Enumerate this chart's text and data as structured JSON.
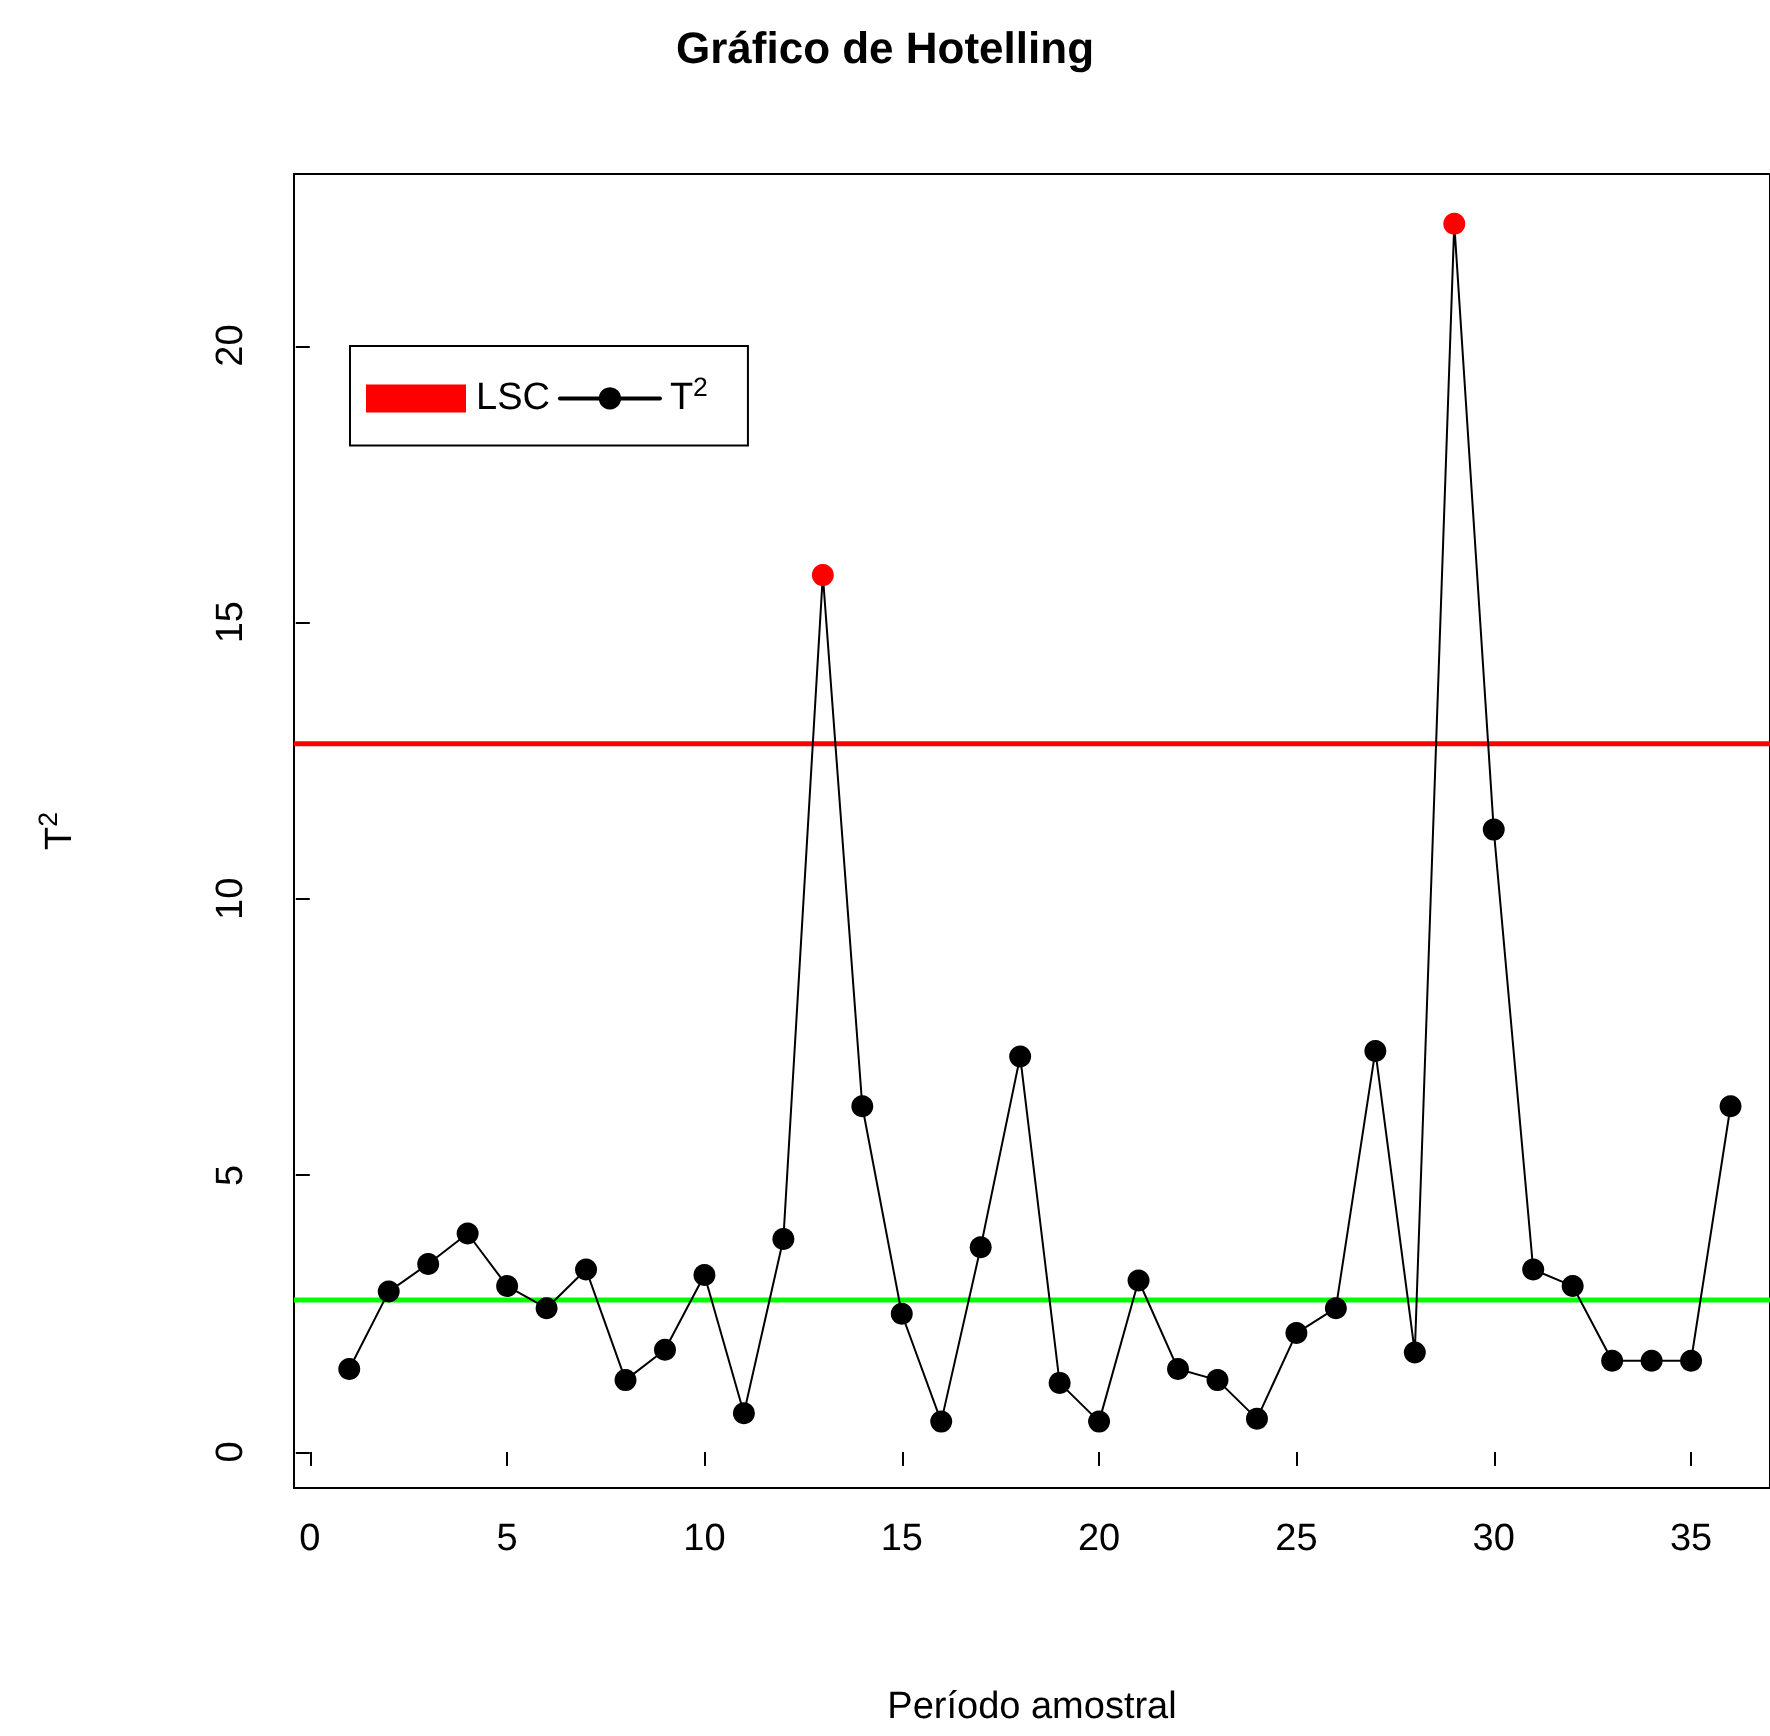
{
  "chart_data": {
    "type": "line",
    "title": "Gráfico de Hotelling",
    "xlabel": "Período amostral",
    "ylabel": "T$^{2}$",
    "x": [
      1,
      2,
      3,
      4,
      5,
      6,
      7,
      8,
      9,
      10,
      11,
      12,
      13,
      14,
      15,
      16,
      17,
      18,
      19,
      20,
      21,
      22,
      23,
      24,
      25,
      26,
      27,
      28,
      29,
      30,
      31,
      32,
      33,
      34,
      35,
      36
    ],
    "series": [
      {
        "name": "T$^{2}$",
        "color": "#000000",
        "colors": [
          "#000000",
          "#000000",
          "#000000",
          "#000000",
          "#000000",
          "#000000",
          "#000000",
          "#000000",
          "#000000",
          "#000000",
          "#000000",
          "#000000",
          "#ff0000",
          "#000000",
          "#000000",
          "#000000",
          "#000000",
          "#000000",
          "#000000",
          "#000000",
          "#000000",
          "#000000",
          "#000000",
          "#000000",
          "#000000",
          "#000000",
          "#000000",
          "#000000",
          "#ff0000",
          "#000000",
          "#000000",
          "#000000",
          "#000000",
          "#000000",
          "#000000",
          "#000000"
        ],
        "values": [
          1.5,
          2.9,
          3.4,
          3.95,
          3.0,
          2.6,
          3.3,
          1.3,
          1.85,
          3.2,
          0.7,
          3.85,
          15.85,
          6.25,
          2.5,
          0.55,
          3.7,
          7.15,
          1.25,
          0.55,
          3.1,
          1.5,
          1.3,
          0.6,
          2.15,
          2.6,
          7.25,
          1.8,
          22.2,
          11.25,
          3.3,
          3.0,
          1.65,
          1.65,
          1.65,
          6.25
        ]
      }
    ],
    "ref_lines": [
      {
        "axis": "y",
        "value": 12.8,
        "label": "LSC",
        "color": "#ff0000"
      },
      {
        "axis": "y",
        "value": 2.75,
        "label": null,
        "color": "#00ff00"
      }
    ],
    "xlim": [
      -0.4,
      37
    ],
    "ylim": [
      -0.65,
      23.1
    ],
    "xticks": [
      0,
      5,
      10,
      15,
      20,
      25,
      30,
      35
    ],
    "yticks": [
      0,
      5,
      10,
      15,
      20
    ],
    "marker": "circle",
    "line_style": "solid",
    "grid": false,
    "legend": "top left"
  }
}
